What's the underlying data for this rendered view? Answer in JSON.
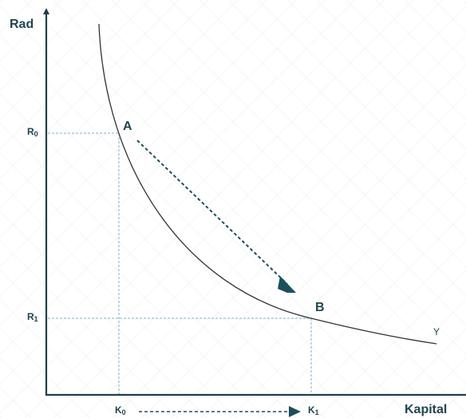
{
  "axes": {
    "y_label": "Rad",
    "x_label": "Kapital"
  },
  "ticks": {
    "r0": {
      "main": "R",
      "sub": "0"
    },
    "r1": {
      "main": "R",
      "sub": "1"
    },
    "k0": {
      "main": "K",
      "sub": "0"
    },
    "k1": {
      "main": "K",
      "sub": "1"
    }
  },
  "points": {
    "a": "A",
    "b": "B"
  },
  "curve_label": "Y",
  "colors": {
    "axis": "#1f3f48",
    "curve": "#333333",
    "guide": "#7ab3c4",
    "arrow": "#1e4e5c",
    "text": "#1f4550"
  }
}
